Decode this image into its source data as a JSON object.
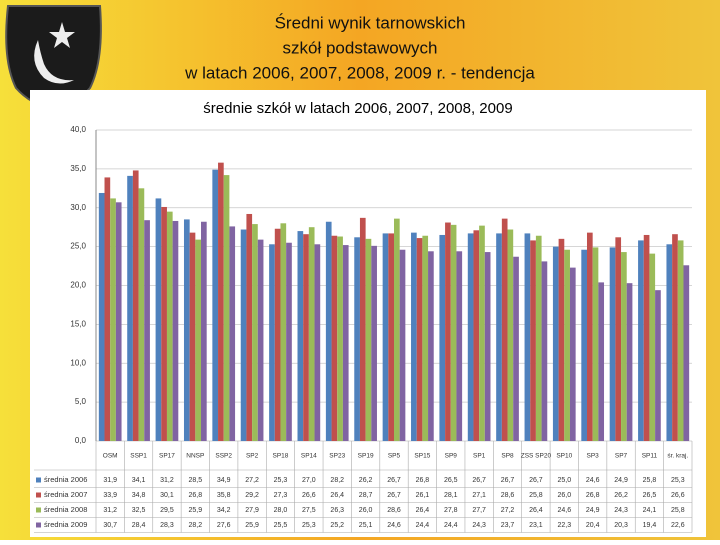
{
  "slide_title": [
    "Średni wynik tarnowskich",
    "szkół podstawowych",
    "w latach 2006, 2007, 2008, 2009 r. - tendencja"
  ],
  "chart_data": {
    "type": "bar",
    "title": "średnie szkół w latach 2006, 2007, 2008, 2009",
    "categories": [
      "OSM",
      "SSP1",
      "SP17",
      "NNSP",
      "SSP2",
      "SP2",
      "SP18",
      "SP14",
      "SP23",
      "SP19",
      "SP5",
      "SP15",
      "SP9",
      "SP1",
      "SP8",
      "ZSS SP20",
      "SP10",
      "SP3",
      "SP7",
      "SP11",
      "śr. kraj."
    ],
    "series": [
      {
        "name": "średnia 2006",
        "color": "#4f81bd",
        "values": [
          31.9,
          34.1,
          31.2,
          28.5,
          34.9,
          27.2,
          25.3,
          27.0,
          28.2,
          26.2,
          26.7,
          26.8,
          26.5,
          26.7,
          26.7,
          26.7,
          25.0,
          24.6,
          24.9,
          25.8,
          25.3
        ],
        "value_labels": [
          "31,9",
          "34,1",
          "31,2",
          "28,5",
          "34,9",
          "27,2",
          "25,3",
          "27,0",
          "28,2",
          "26,2",
          "26,7",
          "26,8",
          "26,5",
          "26,7",
          "26,7",
          "26,7",
          "25,0",
          "24,6",
          "24,9",
          "25,8",
          "25,3"
        ]
      },
      {
        "name": "średnia 2007",
        "color": "#c0504d",
        "values": [
          33.9,
          34.8,
          30.1,
          26.8,
          35.8,
          29.2,
          27.3,
          26.6,
          26.4,
          28.7,
          26.7,
          26.1,
          28.1,
          27.1,
          28.6,
          25.8,
          26.0,
          26.8,
          26.2,
          26.5,
          26.6
        ],
        "value_labels": [
          "33,9",
          "34,8",
          "30,1",
          "26,8",
          "35,8",
          "29,2",
          "27,3",
          "26,6",
          "26,4",
          "28,7",
          "26,7",
          "26,1",
          "28,1",
          "27,1",
          "28,6",
          "25,8",
          "26,0",
          "26,8",
          "26,2",
          "26,5",
          "26,6"
        ]
      },
      {
        "name": "średnia 2008",
        "color": "#9bbb59",
        "values": [
          31.2,
          32.5,
          29.5,
          25.9,
          34.2,
          27.9,
          28.0,
          27.5,
          26.3,
          26.0,
          28.6,
          26.4,
          27.8,
          27.7,
          27.2,
          26.4,
          24.6,
          24.9,
          24.3,
          24.1,
          25.8
        ],
        "value_labels": [
          "31,2",
          "32,5",
          "29,5",
          "25,9",
          "34,2",
          "27,9",
          "28,0",
          "27,5",
          "26,3",
          "26,0",
          "28,6",
          "26,4",
          "27,8",
          "27,7",
          "27,2",
          "26,4",
          "24,6",
          "24,9",
          "24,3",
          "24,1",
          "25,8"
        ]
      },
      {
        "name": "średnia 2009",
        "color": "#8064a2",
        "values": [
          30.7,
          28.4,
          28.3,
          28.2,
          27.6,
          25.9,
          25.5,
          25.3,
          25.2,
          25.1,
          24.6,
          24.4,
          24.4,
          24.3,
          23.7,
          23.1,
          22.3,
          20.4,
          20.3,
          19.4,
          22.6
        ],
        "value_labels": [
          "30,7",
          "28,4",
          "28,3",
          "28,2",
          "27,6",
          "25,9",
          "25,5",
          "25,3",
          "25,2",
          "25,1",
          "24,6",
          "24,4",
          "24,4",
          "24,3",
          "23,7",
          "23,1",
          "22,3",
          "20,4",
          "20,3",
          "19,4",
          "22,6"
        ]
      }
    ],
    "ylim": [
      0,
      40
    ],
    "yticks": [
      {
        "value": 0,
        "label": "0,0"
      },
      {
        "value": 5,
        "label": "5,0"
      },
      {
        "value": 10,
        "label": "10,0"
      },
      {
        "value": 15,
        "label": "15,0"
      },
      {
        "value": 20,
        "label": "20,0"
      },
      {
        "value": 25,
        "label": "25,0"
      },
      {
        "value": 30,
        "label": "30,0"
      },
      {
        "value": 35,
        "label": "35,0"
      },
      {
        "value": 40,
        "label": "40,0"
      }
    ],
    "grid": true
  }
}
